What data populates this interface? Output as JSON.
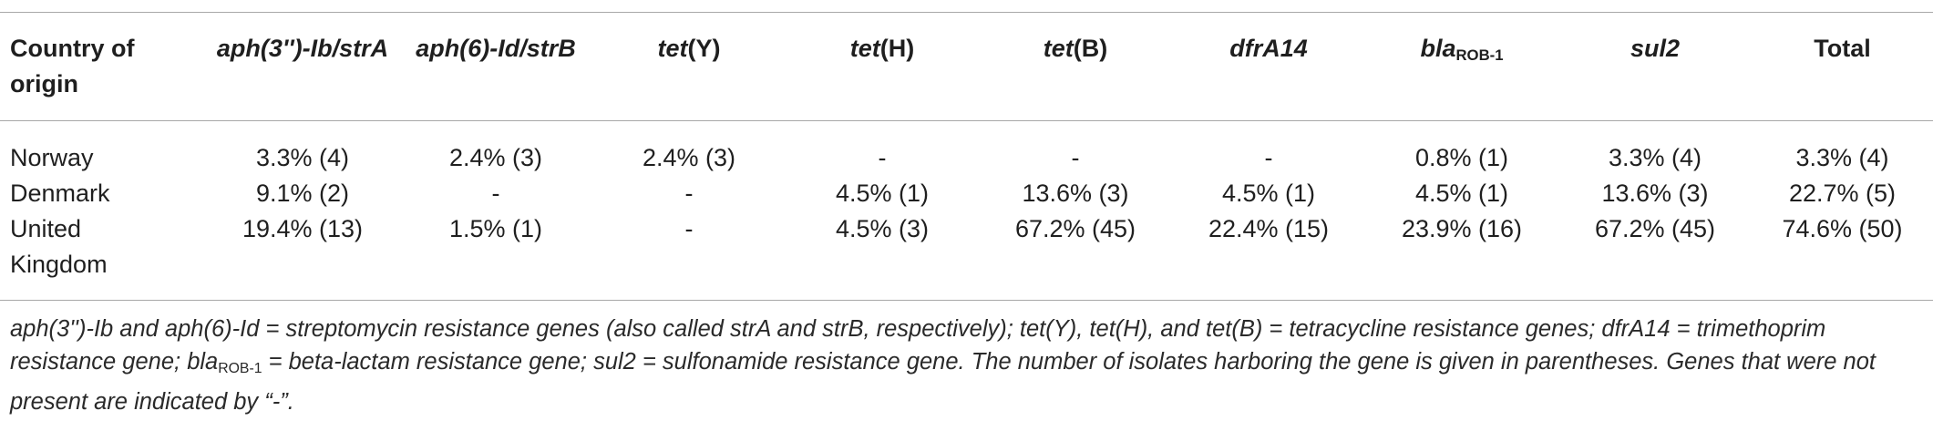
{
  "table": {
    "header": [
      [
        "Country of origin"
      ],
      [
        "aph(3'')-Ib/strA"
      ],
      [
        "aph(6)-Id/strB"
      ],
      [
        "tet",
        "(Y)"
      ],
      [
        "tet",
        "(H)"
      ],
      [
        "tet",
        "(B)"
      ],
      [
        "dfrA14"
      ],
      [
        "bla",
        "ROB-1"
      ],
      [
        "sul2"
      ],
      [
        "Total"
      ]
    ],
    "rows": [
      [
        "Norway",
        "3.3% (4)",
        "2.4% (3)",
        "2.4% (3)",
        "-",
        "-",
        "-",
        "0.8% (1)",
        "3.3% (4)",
        "3.3% (4)"
      ],
      [
        "Denmark",
        "9.1% (2)",
        "-",
        "-",
        "4.5% (1)",
        "13.6% (3)",
        "4.5% (1)",
        "4.5% (1)",
        "13.6% (3)",
        "22.7% (5)"
      ],
      [
        "United Kingdom",
        "19.4% (13)",
        "1.5% (1)",
        "-",
        "4.5% (3)",
        "67.2% (45)",
        "22.4% (15)",
        "23.9% (16)",
        "67.2% (45)",
        "74.6% (50)"
      ]
    ]
  },
  "footnote": [
    "aph(3'')-Ib and aph(6)-Id = streptomycin resistance genes (also called strA and strB, respectively); tet(Y), tet(H), and tet(B) = tetracycline resistance genes; dfrA14 = trimethoprim resistance gene; ",
    "bla",
    "ROB-1",
    " = beta-lactam resistance gene; sul2 = sulfonamide resistance gene. The number of isolates harboring the gene is given in parentheses. Genes that were not present are indicated by “-”."
  ]
}
